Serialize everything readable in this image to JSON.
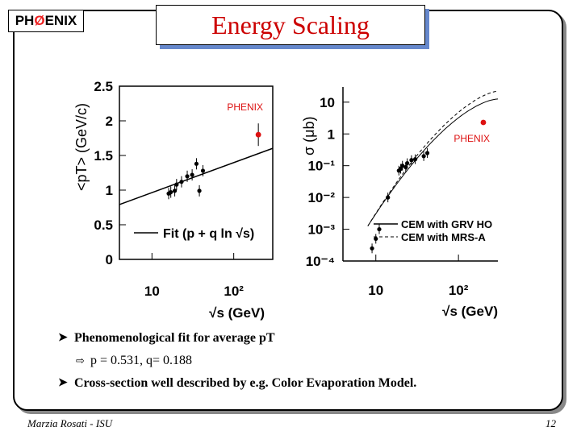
{
  "logo": {
    "prefix": "PH",
    "mid": "Ø",
    "suffix": "ENIX"
  },
  "title": "Energy Scaling",
  "chart_data": [
    {
      "type": "scatter",
      "ylabel": "<pT> (GeV/c)",
      "xlabel": "√s (GeV)",
      "xscale": "log",
      "xlim": [
        4,
        300
      ],
      "ylim": [
        0,
        2.5
      ],
      "y_ticks": [
        "0",
        "0.5",
        "1",
        "1.5",
        "2",
        "2.5"
      ],
      "x_ticks": [
        "10",
        "10²"
      ],
      "phenix_label": "PHENIX",
      "fit_label": "Fit (p + q ln √s)",
      "fit": {
        "p": 0.531,
        "q": 0.188
      },
      "points": [
        {
          "x": 16,
          "y": 0.95
        },
        {
          "x": 17,
          "y": 0.97
        },
        {
          "x": 19,
          "y": 0.99
        },
        {
          "x": 20,
          "y": 1.08
        },
        {
          "x": 23,
          "y": 1.12
        },
        {
          "x": 27,
          "y": 1.2
        },
        {
          "x": 31,
          "y": 1.22
        },
        {
          "x": 35,
          "y": 1.38
        },
        {
          "x": 38,
          "y": 0.99
        },
        {
          "x": 42,
          "y": 1.28
        }
      ],
      "phenix": {
        "x": 200,
        "y": 1.8
      }
    },
    {
      "type": "line",
      "ylabel": "σ (μb)",
      "xlabel": "√s (GeV)",
      "xscale": "log",
      "yscale": "log",
      "xlim": [
        4,
        300
      ],
      "ylim": [
        0.0001,
        30
      ],
      "y_ticks": [
        "10",
        "1",
        "10⁻¹",
        "10⁻²",
        "10⁻³",
        "10⁻⁴"
      ],
      "x_ticks": [
        "10",
        "10²"
      ],
      "phenix_label": "PHENIX",
      "series": [
        {
          "name": "CEM with GRV HO",
          "style": "solid"
        },
        {
          "name": "CEM with MRS-A",
          "style": "dashed"
        }
      ],
      "points": [
        {
          "x": 9,
          "y": 0.00025
        },
        {
          "x": 10,
          "y": 0.0005
        },
        {
          "x": 11,
          "y": 0.001
        },
        {
          "x": 14,
          "y": 0.01
        },
        {
          "x": 19,
          "y": 0.07
        },
        {
          "x": 20,
          "y": 0.08
        },
        {
          "x": 21,
          "y": 0.1
        },
        {
          "x": 23,
          "y": 0.09
        },
        {
          "x": 24,
          "y": 0.12
        },
        {
          "x": 27,
          "y": 0.15
        },
        {
          "x": 30,
          "y": 0.16
        },
        {
          "x": 38,
          "y": 0.2
        },
        {
          "x": 42,
          "y": 0.25
        }
      ],
      "phenix": {
        "x": 200,
        "y": 2.3
      }
    }
  ],
  "bullets": [
    {
      "text": "Phenomenological fit for average pT",
      "sub": "p = 0.531, q= 0.188"
    },
    {
      "text": "Cross-section well described by e.g. Color Evaporation Model."
    }
  ],
  "footer": {
    "author": "Marzia Rosati -  ISU",
    "page": "12"
  }
}
